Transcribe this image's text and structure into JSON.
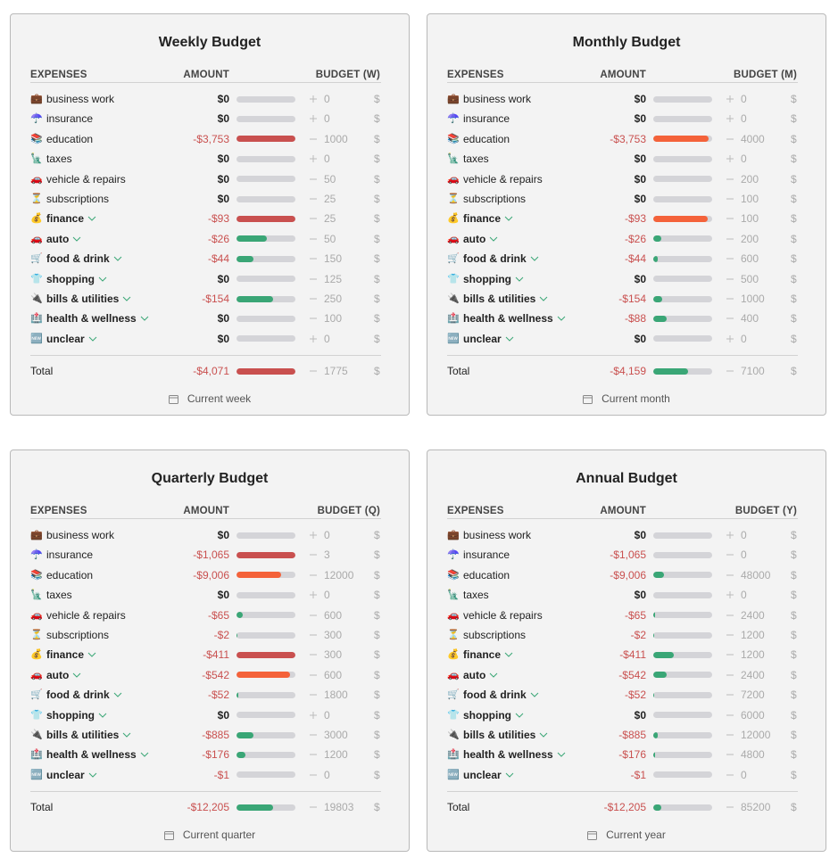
{
  "panels": [
    {
      "title": "Weekly Budget",
      "headers": [
        "EXPENSES",
        "AMOUNT",
        "BUDGET (W)"
      ],
      "currency": "$",
      "period": "Current week",
      "rows": [
        {
          "icon": "💼",
          "name": "business work",
          "expandable": false,
          "amount": {
            "value": 0,
            "label": "$0"
          },
          "budget": 0
        },
        {
          "icon": "☂️",
          "name": "insurance",
          "expandable": false,
          "amount": {
            "value": 0,
            "label": "$0"
          },
          "budget": 0
        },
        {
          "icon": "📚",
          "name": "education",
          "expandable": false,
          "amount": {
            "value": -3753,
            "label": "-$3,753"
          },
          "budget": 1000
        },
        {
          "icon": "🗽",
          "name": "taxes",
          "expandable": false,
          "amount": {
            "value": 0,
            "label": "$0"
          },
          "budget": 0
        },
        {
          "icon": "🚗",
          "name": "vehicle & repairs",
          "expandable": false,
          "amount": {
            "value": 0,
            "label": "$0"
          },
          "budget": 50
        },
        {
          "icon": "⏳",
          "name": "subscriptions",
          "expandable": false,
          "amount": {
            "value": 0,
            "label": "$0"
          },
          "budget": 25
        },
        {
          "icon": "💰",
          "name": "finance",
          "expandable": true,
          "amount": {
            "value": -93,
            "label": "-$93"
          },
          "budget": 25
        },
        {
          "icon": "🚗",
          "name": "auto",
          "expandable": true,
          "amount": {
            "value": -26,
            "label": "-$26"
          },
          "budget": 50
        },
        {
          "icon": "🛒",
          "name": "food & drink",
          "expandable": true,
          "amount": {
            "value": -44,
            "label": "-$44"
          },
          "budget": 150
        },
        {
          "icon": "👕",
          "name": "shopping",
          "expandable": true,
          "amount": {
            "value": 0,
            "label": "$0"
          },
          "budget": 125
        },
        {
          "icon": "🔌",
          "name": "bills & utilities",
          "expandable": true,
          "amount": {
            "value": -154,
            "label": "-$154"
          },
          "budget": 250
        },
        {
          "icon": "🏥",
          "name": "health & wellness",
          "expandable": true,
          "amount": {
            "value": 0,
            "label": "$0"
          },
          "budget": 100
        },
        {
          "icon": "🆕",
          "name": "unclear",
          "expandable": true,
          "amount": {
            "value": 0,
            "label": "$0"
          },
          "budget": 0
        }
      ],
      "total": {
        "name": "Total",
        "amount": {
          "value": -4071,
          "label": "-$4,071"
        },
        "budget": 1775
      }
    },
    {
      "title": "Monthly Budget",
      "headers": [
        "EXPENSES",
        "AMOUNT",
        "BUDGET (M)"
      ],
      "currency": "$",
      "period": "Current month",
      "rows": [
        {
          "icon": "💼",
          "name": "business work",
          "expandable": false,
          "amount": {
            "value": 0,
            "label": "$0"
          },
          "budget": 0
        },
        {
          "icon": "☂️",
          "name": "insurance",
          "expandable": false,
          "amount": {
            "value": 0,
            "label": "$0"
          },
          "budget": 0
        },
        {
          "icon": "📚",
          "name": "education",
          "expandable": false,
          "amount": {
            "value": -3753,
            "label": "-$3,753"
          },
          "budget": 4000
        },
        {
          "icon": "🗽",
          "name": "taxes",
          "expandable": false,
          "amount": {
            "value": 0,
            "label": "$0"
          },
          "budget": 0
        },
        {
          "icon": "🚗",
          "name": "vehicle & repairs",
          "expandable": false,
          "amount": {
            "value": 0,
            "label": "$0"
          },
          "budget": 200
        },
        {
          "icon": "⏳",
          "name": "subscriptions",
          "expandable": false,
          "amount": {
            "value": 0,
            "label": "$0"
          },
          "budget": 100
        },
        {
          "icon": "💰",
          "name": "finance",
          "expandable": true,
          "amount": {
            "value": -93,
            "label": "-$93"
          },
          "budget": 100
        },
        {
          "icon": "🚗",
          "name": "auto",
          "expandable": true,
          "amount": {
            "value": -26,
            "label": "-$26"
          },
          "budget": 200
        },
        {
          "icon": "🛒",
          "name": "food & drink",
          "expandable": true,
          "amount": {
            "value": -44,
            "label": "-$44"
          },
          "budget": 600
        },
        {
          "icon": "👕",
          "name": "shopping",
          "expandable": true,
          "amount": {
            "value": 0,
            "label": "$0"
          },
          "budget": 500
        },
        {
          "icon": "🔌",
          "name": "bills & utilities",
          "expandable": true,
          "amount": {
            "value": -154,
            "label": "-$154"
          },
          "budget": 1000
        },
        {
          "icon": "🏥",
          "name": "health & wellness",
          "expandable": true,
          "amount": {
            "value": -88,
            "label": "-$88"
          },
          "budget": 400
        },
        {
          "icon": "🆕",
          "name": "unclear",
          "expandable": true,
          "amount": {
            "value": 0,
            "label": "$0"
          },
          "budget": 0
        }
      ],
      "total": {
        "name": "Total",
        "amount": {
          "value": -4159,
          "label": "-$4,159"
        },
        "budget": 7100
      }
    },
    {
      "title": "Quarterly Budget",
      "headers": [
        "EXPENSES",
        "AMOUNT",
        "BUDGET (Q)"
      ],
      "currency": "$",
      "period": "Current quarter",
      "rows": [
        {
          "icon": "💼",
          "name": "business work",
          "expandable": false,
          "amount": {
            "value": 0,
            "label": "$0"
          },
          "budget": 0
        },
        {
          "icon": "☂️",
          "name": "insurance",
          "expandable": false,
          "amount": {
            "value": -1065,
            "label": "-$1,065"
          },
          "budget": 3
        },
        {
          "icon": "📚",
          "name": "education",
          "expandable": false,
          "amount": {
            "value": -9006,
            "label": "-$9,006"
          },
          "budget": 12000
        },
        {
          "icon": "🗽",
          "name": "taxes",
          "expandable": false,
          "amount": {
            "value": 0,
            "label": "$0"
          },
          "budget": 0
        },
        {
          "icon": "🚗",
          "name": "vehicle & repairs",
          "expandable": false,
          "amount": {
            "value": -65,
            "label": "-$65"
          },
          "budget": 600
        },
        {
          "icon": "⏳",
          "name": "subscriptions",
          "expandable": false,
          "amount": {
            "value": -2,
            "label": "-$2"
          },
          "budget": 300
        },
        {
          "icon": "💰",
          "name": "finance",
          "expandable": true,
          "amount": {
            "value": -411,
            "label": "-$411"
          },
          "budget": 300
        },
        {
          "icon": "🚗",
          "name": "auto",
          "expandable": true,
          "amount": {
            "value": -542,
            "label": "-$542"
          },
          "budget": 600
        },
        {
          "icon": "🛒",
          "name": "food & drink",
          "expandable": true,
          "amount": {
            "value": -52,
            "label": "-$52"
          },
          "budget": 1800
        },
        {
          "icon": "👕",
          "name": "shopping",
          "expandable": true,
          "amount": {
            "value": 0,
            "label": "$0"
          },
          "budget": 0
        },
        {
          "icon": "🔌",
          "name": "bills & utilities",
          "expandable": true,
          "amount": {
            "value": -885,
            "label": "-$885"
          },
          "budget": 3000
        },
        {
          "icon": "🏥",
          "name": "health & wellness",
          "expandable": true,
          "amount": {
            "value": -176,
            "label": "-$176"
          },
          "budget": 1200
        },
        {
          "icon": "🆕",
          "name": "unclear",
          "expandable": true,
          "amount": {
            "value": -1,
            "label": "-$1"
          },
          "budget": 0
        }
      ],
      "total": {
        "name": "Total",
        "amount": {
          "value": -12205,
          "label": "-$12,205"
        },
        "budget": 19803
      }
    },
    {
      "title": "Annual Budget",
      "headers": [
        "EXPENSES",
        "AMOUNT",
        "BUDGET (Y)"
      ],
      "currency": "$",
      "period": "Current year",
      "rows": [
        {
          "icon": "💼",
          "name": "business work",
          "expandable": false,
          "amount": {
            "value": 0,
            "label": "$0"
          },
          "budget": 0
        },
        {
          "icon": "☂️",
          "name": "insurance",
          "expandable": false,
          "amount": {
            "value": -1065,
            "label": "-$1,065"
          },
          "budget": 0
        },
        {
          "icon": "📚",
          "name": "education",
          "expandable": false,
          "amount": {
            "value": -9006,
            "label": "-$9,006"
          },
          "budget": 48000
        },
        {
          "icon": "🗽",
          "name": "taxes",
          "expandable": false,
          "amount": {
            "value": 0,
            "label": "$0"
          },
          "budget": 0
        },
        {
          "icon": "🚗",
          "name": "vehicle & repairs",
          "expandable": false,
          "amount": {
            "value": -65,
            "label": "-$65"
          },
          "budget": 2400
        },
        {
          "icon": "⏳",
          "name": "subscriptions",
          "expandable": false,
          "amount": {
            "value": -2,
            "label": "-$2"
          },
          "budget": 1200
        },
        {
          "icon": "💰",
          "name": "finance",
          "expandable": true,
          "amount": {
            "value": -411,
            "label": "-$411"
          },
          "budget": 1200
        },
        {
          "icon": "🚗",
          "name": "auto",
          "expandable": true,
          "amount": {
            "value": -542,
            "label": "-$542"
          },
          "budget": 2400
        },
        {
          "icon": "🛒",
          "name": "food & drink",
          "expandable": true,
          "amount": {
            "value": -52,
            "label": "-$52"
          },
          "budget": 7200
        },
        {
          "icon": "👕",
          "name": "shopping",
          "expandable": true,
          "amount": {
            "value": 0,
            "label": "$0"
          },
          "budget": 6000
        },
        {
          "icon": "🔌",
          "name": "bills & utilities",
          "expandable": true,
          "amount": {
            "value": -885,
            "label": "-$885"
          },
          "budget": 12000
        },
        {
          "icon": "🏥",
          "name": "health & wellness",
          "expandable": true,
          "amount": {
            "value": -176,
            "label": "-$176"
          },
          "budget": 4800
        },
        {
          "icon": "🆕",
          "name": "unclear",
          "expandable": true,
          "amount": {
            "value": -1,
            "label": "-$1"
          },
          "budget": 0
        }
      ],
      "total": {
        "name": "Total",
        "amount": {
          "value": -12205,
          "label": "-$12,205"
        },
        "budget": 85200
      }
    }
  ]
}
